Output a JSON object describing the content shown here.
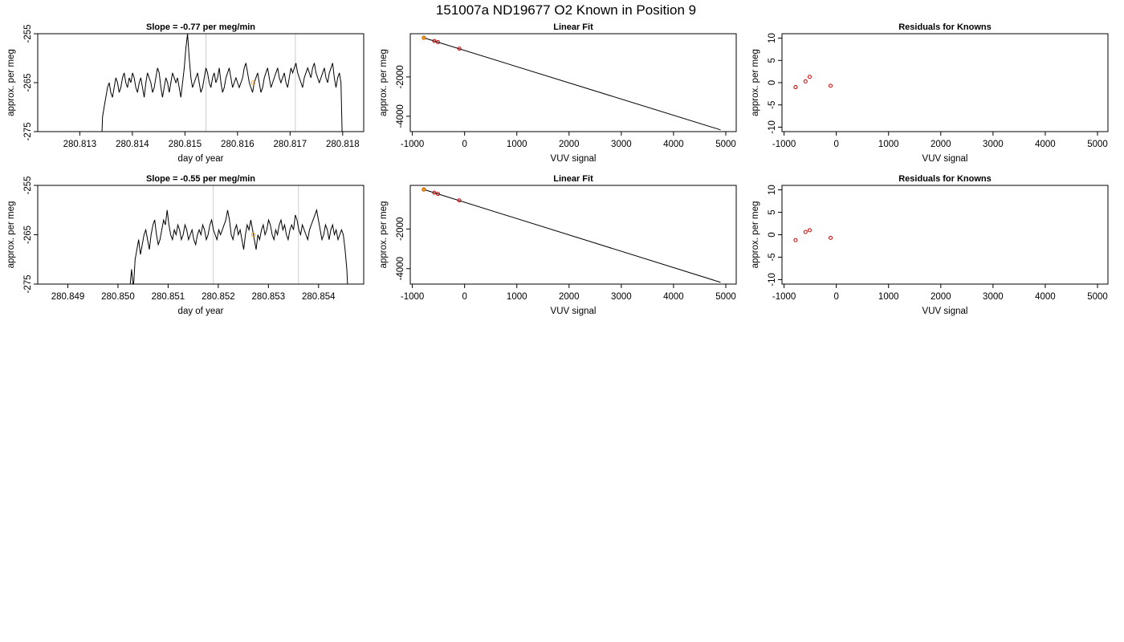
{
  "figure_title": "151007a     ND19677   O2 Known in Position  9",
  "chart_data": [
    {
      "type": "line",
      "title": "Slope =  -0.77  per meg/min",
      "xlabel": "day of year",
      "ylabel": "approx. per meg",
      "xlim": [
        280.8122,
        280.8184
      ],
      "ylim": [
        -275,
        -255
      ],
      "xticks": [
        "280.813",
        "280.814",
        "280.815",
        "280.816",
        "280.817",
        "280.818"
      ],
      "xtick_values": [
        280.813,
        280.814,
        280.815,
        280.816,
        280.817,
        280.818
      ],
      "yticks": [
        "-275",
        "-265",
        "-255"
      ],
      "ytick_values": [
        -275,
        -265,
        -255
      ],
      "vlines": [
        280.8154,
        280.8171
      ],
      "trace_start": 280.8134,
      "trace_end": 280.818,
      "marker": {
        "x": 280.8163,
        "y": -265.0,
        "color": "#ffa500"
      },
      "series": [
        {
          "values": [
            -282,
            -272,
            -270,
            -268,
            -266,
            -265,
            -267,
            -268,
            -266,
            -264,
            -265,
            -267,
            -266,
            -264,
            -263,
            -265,
            -266,
            -264,
            -265,
            -263,
            -264,
            -266,
            -267,
            -265,
            -264,
            -266,
            -268,
            -265,
            -263,
            -264,
            -265,
            -267,
            -266,
            -264,
            -262,
            -263,
            -266,
            -268,
            -266,
            -264,
            -265,
            -267,
            -265,
            -263,
            -264,
            -265,
            -264,
            -266,
            -268,
            -265,
            -262,
            -258,
            -255,
            -260,
            -264,
            -266,
            -265,
            -264,
            -263,
            -265,
            -267,
            -266,
            -264,
            -262,
            -263,
            -265,
            -266,
            -264,
            -263,
            -265,
            -264,
            -262,
            -265,
            -267,
            -266,
            -264,
            -263,
            -262,
            -264,
            -266,
            -265,
            -264,
            -265,
            -266,
            -265,
            -264,
            -262,
            -261,
            -263,
            -265,
            -266,
            -267,
            -265,
            -264,
            -263,
            -265,
            -267,
            -266,
            -264,
            -263,
            -262,
            -264,
            -266,
            -265,
            -264,
            -263,
            -262,
            -264,
            -265,
            -264,
            -263,
            -265,
            -266,
            -264,
            -262,
            -263,
            -262,
            -261,
            -263,
            -264,
            -265,
            -266,
            -264,
            -263,
            -262,
            -263,
            -264,
            -262,
            -261,
            -263,
            -264,
            -265,
            -264,
            -263,
            -262,
            -264,
            -265,
            -263,
            -262,
            -261,
            -264,
            -266,
            -264,
            -263,
            -265,
            -280
          ]
        }
      ]
    },
    {
      "type": "scatter",
      "title": "Linear Fit",
      "xlabel": "VUV signal",
      "ylabel": "approx. per meg",
      "xlim": [
        -1040,
        5200
      ],
      "ylim": [
        -4780,
        200
      ],
      "xticks": [
        "-1000",
        "0",
        "1000",
        "2000",
        "3000",
        "4000",
        "5000"
      ],
      "xtick_values": [
        -1000,
        0,
        1000,
        2000,
        3000,
        4000,
        5000
      ],
      "yticks": [
        "-4000",
        "-2000"
      ],
      "ytick_values": [
        -4000,
        -2000
      ],
      "fit_line": {
        "x": [
          -780,
          4900
        ],
        "y": [
          -9,
          -4690
        ]
      },
      "points": {
        "x": [
          -780,
          -580,
          -510,
          -100
        ],
        "y": [
          -10,
          -170,
          -230,
          -560
        ],
        "color": "#cc0000"
      },
      "highlight": {
        "x": -780,
        "y": -10,
        "color": "#ffa500"
      }
    },
    {
      "type": "scatter",
      "title": "Residuals for Knowns",
      "xlabel": "VUV signal",
      "ylabel": "approx. per meg",
      "xlim": [
        -1040,
        5200
      ],
      "ylim": [
        -11,
        11
      ],
      "xticks": [
        "-1000",
        "0",
        "1000",
        "2000",
        "3000",
        "4000",
        "5000"
      ],
      "xtick_values": [
        -1000,
        0,
        1000,
        2000,
        3000,
        4000,
        5000
      ],
      "yticks": [
        "-10",
        "-5",
        "0",
        "5",
        "10"
      ],
      "ytick_values": [
        -10,
        -5,
        0,
        5,
        10
      ],
      "points": {
        "x": [
          -780,
          -590,
          -510,
          -110
        ],
        "y": [
          -1.0,
          0.3,
          1.3,
          -0.7
        ],
        "color": "#cc0000"
      }
    },
    {
      "type": "line",
      "title": "Slope =  -0.55  per meg/min",
      "xlabel": "day of year",
      "ylabel": "approx. per meg",
      "xlim": [
        280.8484,
        280.8549
      ],
      "ylim": [
        -275,
        -255
      ],
      "xticks": [
        "280.849",
        "280.850",
        "280.851",
        "280.852",
        "280.853",
        "280.854"
      ],
      "xtick_values": [
        280.849,
        280.85,
        280.851,
        280.852,
        280.853,
        280.854
      ],
      "yticks": [
        "-275",
        "-265",
        "-255"
      ],
      "ytick_values": [
        -275,
        -265,
        -255
      ],
      "vlines": [
        280.8519,
        280.8536
      ],
      "trace_start": 280.8502,
      "trace_end": 280.8546,
      "marker": {
        "x": 280.8527,
        "y": -265.0,
        "color": "#ffa500"
      },
      "series": [
        {
          "values": [
            -280,
            -276,
            -272,
            -276,
            -270,
            -268,
            -266,
            -269,
            -267,
            -265,
            -264,
            -266,
            -268,
            -265,
            -263,
            -262,
            -265,
            -267,
            -266,
            -264,
            -262,
            -263,
            -260,
            -263,
            -265,
            -266,
            -264,
            -265,
            -263,
            -264,
            -266,
            -265,
            -263,
            -264,
            -266,
            -265,
            -264,
            -266,
            -267,
            -265,
            -264,
            -265,
            -263,
            -264,
            -266,
            -265,
            -263,
            -262,
            -264,
            -265,
            -266,
            -264,
            -265,
            -264,
            -263,
            -262,
            -260,
            -262,
            -265,
            -266,
            -264,
            -263,
            -265,
            -264,
            -266,
            -268,
            -265,
            -263,
            -264,
            -262,
            -264,
            -266,
            -268,
            -265,
            -266,
            -264,
            -263,
            -265,
            -264,
            -262,
            -263,
            -265,
            -266,
            -264,
            -265,
            -263,
            -262,
            -264,
            -263,
            -265,
            -266,
            -264,
            -263,
            -264,
            -261,
            -262,
            -264,
            -265,
            -263,
            -264,
            -265,
            -266,
            -264,
            -263,
            -262,
            -261,
            -260,
            -262,
            -264,
            -266,
            -265,
            -263,
            -264,
            -266,
            -264,
            -263,
            -265,
            -264,
            -266,
            -265,
            -264,
            -265,
            -268,
            -272,
            -280
          ]
        }
      ]
    },
    {
      "type": "scatter",
      "title": "Linear Fit",
      "xlabel": "VUV signal",
      "ylabel": "approx. per meg",
      "xlim": [
        -1040,
        5200
      ],
      "ylim": [
        -4780,
        200
      ],
      "xticks": [
        "-1000",
        "0",
        "1000",
        "2000",
        "3000",
        "4000",
        "5000"
      ],
      "xtick_values": [
        -1000,
        0,
        1000,
        2000,
        3000,
        4000,
        5000
      ],
      "yticks": [
        "-4000",
        "-2000"
      ],
      "ytick_values": [
        -4000,
        -2000
      ],
      "fit_line": {
        "x": [
          -780,
          4900
        ],
        "y": [
          -9,
          -4690
        ]
      },
      "points": {
        "x": [
          -780,
          -580,
          -510,
          -100
        ],
        "y": [
          -10,
          -170,
          -230,
          -560
        ],
        "color": "#cc0000"
      },
      "highlight": {
        "x": -780,
        "y": -10,
        "color": "#ffa500"
      }
    },
    {
      "type": "scatter",
      "title": "Residuals for Knowns",
      "xlabel": "VUV signal",
      "ylabel": "approx. per meg",
      "xlim": [
        -1040,
        5200
      ],
      "ylim": [
        -11,
        11
      ],
      "xticks": [
        "-1000",
        "0",
        "1000",
        "2000",
        "3000",
        "4000",
        "5000"
      ],
      "xtick_values": [
        -1000,
        0,
        1000,
        2000,
        3000,
        4000,
        5000
      ],
      "yticks": [
        "-10",
        "-5",
        "0",
        "5",
        "10"
      ],
      "ytick_values": [
        -10,
        -5,
        0,
        5,
        10
      ],
      "points": {
        "x": [
          -780,
          -590,
          -510,
          -110
        ],
        "y": [
          -1.2,
          0.6,
          1.0,
          -0.7
        ],
        "color": "#cc0000"
      }
    }
  ]
}
